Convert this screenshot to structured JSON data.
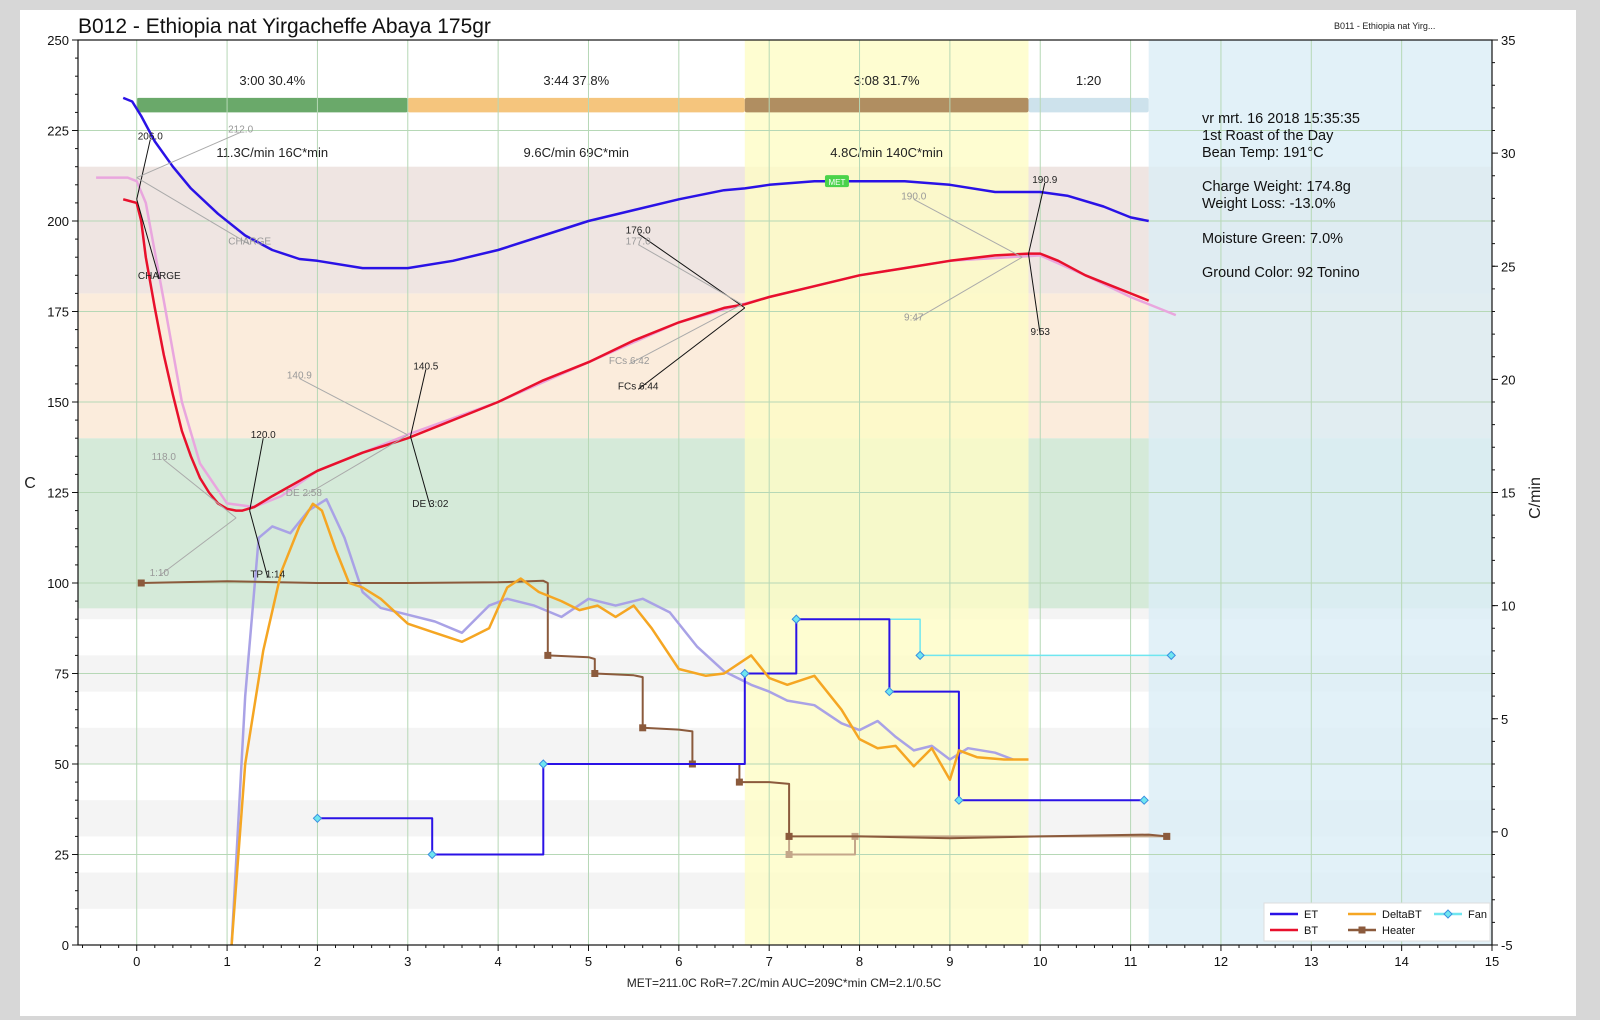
{
  "title": "B012 - Ethiopia nat Yirgacheffe Abaya 175gr",
  "background_profile_label": "B011 - Ethiopia nat Yirg...",
  "footer": "MET=211.0C   RoR=7.2C/min   AUC=209C*min   CM=2.1/0.5C",
  "info_lines": [
    "vr mrt. 16 2018 15:35:35",
    "1st Roast of the Day",
    "Bean Temp: 191°C",
    "",
    "Charge Weight: 174.8g",
    "Weight Loss: -13.0%",
    "",
    "Moisture Green: 7.0%",
    "",
    "Ground Color: 92 Tonino"
  ],
  "colors": {
    "ET": "#2a12e6",
    "BT": "#e8102c",
    "DeltaBT": "#f5a623",
    "DeltaET": "#a9a2e6",
    "Heater": "#8b5a3c",
    "Fan": "#6fe6f0",
    "BT_bg": "#e9a6de",
    "heater_bg": "#c4a78a",
    "phase_dry": "#6aa96a",
    "phase_maillard": "#f5c57d",
    "phase_dev": "#b08e61",
    "phase_cool": "#cde2ec"
  },
  "chart_data": {
    "type": "line",
    "xlabel": "",
    "ylabel": "C",
    "y2label": "C/min",
    "xlim": [
      -0.65,
      15
    ],
    "ylim": [
      0,
      250
    ],
    "y2lim": [
      -5,
      35
    ],
    "xticks": [
      0,
      1,
      2,
      3,
      4,
      5,
      6,
      7,
      8,
      9,
      10,
      11,
      12,
      13,
      14,
      15
    ],
    "yticks": [
      0,
      25,
      50,
      75,
      100,
      125,
      150,
      175,
      200,
      225,
      250
    ],
    "y2ticks": [
      -5,
      0,
      5,
      10,
      15,
      20,
      25,
      30,
      35
    ],
    "grid": true,
    "legend_position": "bottom-right",
    "legend": [
      {
        "name": "ET",
        "color": "#2a12e6",
        "marker": "none"
      },
      {
        "name": "BT",
        "color": "#e8102c",
        "marker": "none"
      },
      {
        "name": "DeltaBT",
        "color": "#f5a623",
        "marker": "none"
      },
      {
        "name": "Heater",
        "color": "#8b5a3c",
        "marker": "square"
      },
      {
        "name": "Fan",
        "color": "#6fe6f0",
        "marker": "diamond"
      }
    ],
    "phase_bar": [
      {
        "start": 0,
        "end": 3.0,
        "label": "3:00  30.4%",
        "ror": "11.3C/min  16C*min",
        "color": "#6aa96a"
      },
      {
        "start": 3.0,
        "end": 6.73,
        "label": "3:44  37.8%",
        "ror": "9.6C/min  69C*min",
        "color": "#f5c57d"
      },
      {
        "start": 6.73,
        "end": 9.87,
        "label": "3:08  31.7%",
        "ror": "4.8C/min  140C*min",
        "color": "#b08e61"
      },
      {
        "start": 9.87,
        "end": 11.2,
        "label": "1:20",
        "ror": "",
        "color": "#cde2ec"
      }
    ],
    "regions": [
      {
        "x0": 6.73,
        "x1": 9.87,
        "kind": "development",
        "color": "#fefcc6"
      },
      {
        "x0": 11.2,
        "x1": 15,
        "kind": "cooling",
        "color": "#dbeef6"
      }
    ],
    "bands": [
      {
        "y0": 93,
        "y1": 140,
        "color": "#d5ead9"
      },
      {
        "y0": 140,
        "y1": 180,
        "color": "#fbecdc"
      },
      {
        "y0": 180,
        "y1": 215,
        "color": "#efe5e2"
      }
    ],
    "series": [
      {
        "name": "ET",
        "axis": "left",
        "x": [
          -0.15,
          -0.05,
          0.05,
          0.2,
          0.4,
          0.6,
          0.9,
          1.2,
          1.5,
          1.8,
          2.0,
          2.5,
          3.0,
          3.5,
          4.0,
          4.5,
          5.0,
          5.5,
          6.0,
          6.5,
          6.73,
          7.0,
          7.5,
          7.8,
          8.0,
          8.5,
          9.0,
          9.5,
          10.0,
          10.3,
          10.7,
          11.0,
          11.2
        ],
        "y": [
          234,
          233,
          229,
          222,
          215,
          209,
          202,
          196,
          192,
          189.5,
          189,
          187,
          187,
          189,
          192,
          196,
          200,
          203,
          206,
          208.5,
          209,
          210,
          211,
          211,
          211,
          211,
          210,
          208,
          208,
          207,
          204,
          201,
          200
        ]
      },
      {
        "name": "BT",
        "axis": "left",
        "x": [
          -0.15,
          0.0,
          0.05,
          0.1,
          0.2,
          0.3,
          0.4,
          0.5,
          0.6,
          0.7,
          0.8,
          0.9,
          1.0,
          1.1,
          1.17,
          1.3,
          1.5,
          2.0,
          2.5,
          3.0,
          3.5,
          4.0,
          4.5,
          5.0,
          5.5,
          6.0,
          6.5,
          6.73,
          7.0,
          7.5,
          8.0,
          8.5,
          9.0,
          9.5,
          9.87,
          10.0,
          10.2,
          10.5,
          10.8,
          11.0,
          11.2
        ],
        "y": [
          206,
          205,
          200,
          190,
          176,
          163,
          152,
          142,
          135,
          129,
          125,
          122,
          120.5,
          120,
          120,
          121,
          124,
          131,
          136,
          140,
          145,
          150,
          156,
          161,
          167,
          172,
          176,
          177,
          179,
          182,
          185,
          187,
          189,
          190.5,
          191,
          191,
          189,
          185,
          182,
          180,
          178
        ]
      },
      {
        "name": "DeltaBT",
        "axis": "right",
        "x": [
          1.05,
          1.2,
          1.4,
          1.6,
          1.8,
          1.95,
          2.05,
          2.2,
          2.35,
          2.5,
          2.7,
          3.0,
          3.3,
          3.6,
          3.9,
          4.1,
          4.25,
          4.45,
          4.7,
          4.9,
          5.1,
          5.3,
          5.5,
          5.7,
          6.0,
          6.3,
          6.5,
          6.8,
          7.0,
          7.2,
          7.5,
          7.8,
          8.0,
          8.2,
          8.4,
          8.6,
          8.8,
          9.0,
          9.1,
          9.3,
          9.6,
          9.87
        ],
        "y": [
          -5,
          3,
          8,
          11.5,
          13.5,
          14.5,
          14.2,
          12.5,
          11,
          10.8,
          10.3,
          9.2,
          8.8,
          8.4,
          9,
          10.8,
          11.2,
          10.6,
          10.2,
          9.8,
          10,
          9.5,
          10,
          9.0,
          7.2,
          6.9,
          7.0,
          7.8,
          6.8,
          6.5,
          6.9,
          5.4,
          4.1,
          3.7,
          3.8,
          2.9,
          3.7,
          2.3,
          3.6,
          3.3,
          3.2,
          3.2
        ]
      },
      {
        "name": "DeltaET",
        "axis": "right",
        "x": [
          1.05,
          1.2,
          1.35,
          1.5,
          1.7,
          1.9,
          2.1,
          2.3,
          2.5,
          2.7,
          3.0,
          3.3,
          3.6,
          3.9,
          4.1,
          4.4,
          4.7,
          5.0,
          5.3,
          5.6,
          5.9,
          6.2,
          6.5,
          6.8,
          7.0,
          7.2,
          7.5,
          7.8,
          8.0,
          8.2,
          8.4,
          8.6,
          8.8,
          9.0,
          9.2,
          9.5,
          9.7
        ],
        "y": [
          -5,
          6,
          13,
          13.5,
          13.2,
          14.2,
          14.7,
          13,
          10.6,
          9.9,
          9.6,
          9.3,
          8.8,
          10,
          10.3,
          10,
          9.5,
          10.3,
          10,
          10.3,
          9.7,
          8.2,
          7.1,
          6.5,
          6.2,
          5.8,
          5.6,
          4.8,
          4.5,
          4.9,
          4.2,
          3.6,
          3.8,
          3.2,
          3.7,
          3.5,
          3.2
        ]
      },
      {
        "name": "Heater",
        "axis": "left",
        "x": [
          0.05,
          1.0,
          2.0,
          3.0,
          4.0,
          4.5,
          4.55,
          4.55,
          5.0,
          5.07,
          5.07,
          5.5,
          5.6,
          5.6,
          6.0,
          6.15,
          6.15,
          6.67,
          6.67,
          7.0,
          7.22,
          7.22,
          8.0,
          9.0,
          10.0,
          11.2,
          11.4
        ],
        "y": [
          100,
          100.5,
          100,
          100,
          100.2,
          100.6,
          100,
          80,
          79.5,
          79,
          75,
          74.5,
          74,
          60,
          59.5,
          59,
          50,
          50,
          45,
          45,
          44.5,
          30,
          30,
          29.5,
          30,
          30.5,
          30
        ]
      },
      {
        "name": "Fan",
        "axis": "left",
        "x": [
          2.0,
          3.27,
          3.27,
          4.5,
          4.5,
          6.73,
          6.73,
          7.3,
          7.3,
          8.33,
          8.33,
          9.1,
          9.1,
          11.15
        ],
        "y": [
          35,
          35,
          25,
          25,
          50,
          50,
          75,
          75,
          90,
          90,
          70,
          70,
          40,
          40
        ]
      },
      {
        "name": "Fan_background",
        "axis": "left",
        "x": [
          7.3,
          8.67,
          8.67,
          11.45
        ],
        "y": [
          90,
          90,
          80,
          80
        ]
      },
      {
        "name": "BT_background",
        "axis": "left",
        "x": [
          -0.45,
          -0.1,
          0.0,
          0.1,
          0.3,
          0.5,
          0.7,
          1.0,
          1.3,
          1.6,
          2.0,
          3.0,
          4.0,
          5.0,
          6.0,
          6.7,
          7.0,
          8.0,
          9.0,
          10.0,
          10.5,
          11.0,
          11.5
        ],
        "y": [
          212,
          212,
          211,
          205,
          178,
          150,
          133,
          122,
          121,
          124,
          131,
          141,
          150,
          161,
          172,
          177,
          179,
          185,
          189,
          190.5,
          185,
          179,
          174
        ]
      },
      {
        "name": "Heater_background",
        "axis": "left",
        "x": [
          7.22,
          7.22,
          7.95,
          7.95,
          8.1,
          11.4
        ],
        "y": [
          30,
          25,
          25,
          30,
          30,
          30
        ]
      }
    ],
    "annotations": [
      {
        "text": "206.0",
        "x": 0.15,
        "y": 222.5,
        "tx": 0.0,
        "ty": 206.0,
        "color": "#222"
      },
      {
        "text": "CHARGE",
        "x": 0.25,
        "y": 184,
        "tx": 0.0,
        "ty": 206.0,
        "color": "#222"
      },
      {
        "text": "212.0",
        "x": 1.15,
        "y": 224.5,
        "tx": 0.0,
        "ty": 212.0,
        "color": "#999"
      },
      {
        "text": "CHARGE",
        "x": 1.25,
        "y": 193.5,
        "tx": 0.0,
        "ty": 212.0,
        "color": "#999"
      },
      {
        "text": "120.0",
        "x": 1.4,
        "y": 140,
        "tx": 1.25,
        "ty": 120.0,
        "color": "#222"
      },
      {
        "text": "TP 1:14",
        "x": 1.45,
        "y": 101.5,
        "tx": 1.25,
        "ty": 120.0,
        "color": "#222"
      },
      {
        "text": "118.0",
        "x": 0.3,
        "y": 134,
        "tx": 1.1,
        "ty": 118.0,
        "color": "#999"
      },
      {
        "text": "1:10",
        "x": 0.25,
        "y": 102,
        "tx": 1.1,
        "ty": 118.0,
        "color": "#999"
      },
      {
        "text": "140.9",
        "x": 1.8,
        "y": 156.5,
        "tx": 3.0,
        "ty": 140.9,
        "color": "#999"
      },
      {
        "text": "DE 2:58",
        "x": 1.85,
        "y": 124,
        "tx": 3.0,
        "ty": 140.9,
        "color": "#999"
      },
      {
        "text": "140.5",
        "x": 3.2,
        "y": 159,
        "tx": 3.03,
        "ty": 140.5,
        "color": "#222"
      },
      {
        "text": "DE 3:02",
        "x": 3.25,
        "y": 121,
        "tx": 3.03,
        "ty": 140.5,
        "color": "#222"
      },
      {
        "text": "176.0",
        "x": 5.55,
        "y": 196.5,
        "tx": 6.73,
        "ty": 176.0,
        "color": "#222"
      },
      {
        "text": "FCs 6:44",
        "x": 5.55,
        "y": 153.5,
        "tx": 6.73,
        "ty": 176.0,
        "color": "#222"
      },
      {
        "text": "177.0",
        "x": 5.55,
        "y": 193.5,
        "tx": 6.7,
        "ty": 177.0,
        "color": "#999"
      },
      {
        "text": "FCs 6:42",
        "x": 5.45,
        "y": 160.5,
        "tx": 6.7,
        "ty": 177.0,
        "color": "#999"
      },
      {
        "text": "190.9",
        "x": 10.05,
        "y": 210.5,
        "tx": 9.87,
        "ty": 190.9,
        "color": "#222"
      },
      {
        "text": "9:53",
        "x": 10.0,
        "y": 168.5,
        "tx": 9.87,
        "ty": 190.9,
        "color": "#222"
      },
      {
        "text": "190.0",
        "x": 8.6,
        "y": 206,
        "tx": 9.8,
        "ty": 190.0,
        "color": "#999"
      },
      {
        "text": "9:47",
        "x": 8.6,
        "y": 172.5,
        "tx": 9.8,
        "ty": 190.0,
        "color": "#999"
      }
    ],
    "met_marker": {
      "label": "MET",
      "x": 7.75,
      "y": 211
    }
  }
}
